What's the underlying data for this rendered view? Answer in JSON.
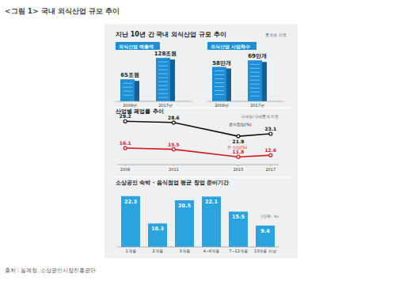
{
  "figure_title": "<그림 1> 국내 외식산업 규모 추이",
  "source": "출처 : 통계청, 소상공인시장진흥공단",
  "panel": {
    "title": "지난 10년 간 국내 외식산업 규모 추이",
    "note": "통계청 자료"
  },
  "chart_data": [
    {
      "type": "bar",
      "title": "외식산업 매출액",
      "categories": [
        "2008년",
        "2017년"
      ],
      "values": [
        65,
        128
      ],
      "value_labels": [
        "65조원",
        "128조원"
      ],
      "ylim": [
        0,
        140
      ],
      "data_labels": true,
      "tick_labels": "x",
      "color": "#1e8fd5"
    },
    {
      "type": "bar",
      "title": "외식산업 사업체수",
      "categories": [
        "2008년",
        "2017년"
      ],
      "values": [
        58,
        69
      ],
      "value_labels": [
        "58만개",
        "69만개"
      ],
      "ylim": [
        0,
        80
      ],
      "data_labels": true,
      "tick_labels": "x",
      "color": "#1e8fd5"
    },
    {
      "type": "line",
      "title": "산업별 폐업률 추이",
      "annotations": [
        "국세청/국세통계 자료"
      ],
      "x": [
        2008,
        2011,
        2015,
        2017
      ],
      "xlim": [
        2007.5,
        2017.5
      ],
      "xticks": [
        2008,
        2011,
        2015,
        2017
      ],
      "ylim": [
        8,
        32
      ],
      "series": [
        {
          "name": "음식점업(%)",
          "color": "#111111",
          "values": [
            29.2,
            28.6,
            21.9,
            23.1
          ]
        },
        {
          "name": "전 산업(%)",
          "color": "#d7191c",
          "values": [
            16.1,
            15.5,
            11.8,
            12.6
          ]
        }
      ],
      "data_labels": true,
      "tick_labels": "x",
      "marker": "circle"
    },
    {
      "type": "bar",
      "title": "소상공인 숙박 · 음식점업 평균 창업 준비기간",
      "annotations": [
        "(단위 : %)"
      ],
      "categories": [
        "1개월",
        "2개월",
        "3개월",
        "4~6개월",
        "7~12개월",
        "13개월 이상"
      ],
      "values": [
        22.3,
        10.3,
        20.5,
        22.1,
        15.5,
        9.4
      ],
      "ylim": [
        0,
        25
      ],
      "data_labels": true,
      "tick_labels": "x",
      "color": "#2aa3df"
    }
  ]
}
